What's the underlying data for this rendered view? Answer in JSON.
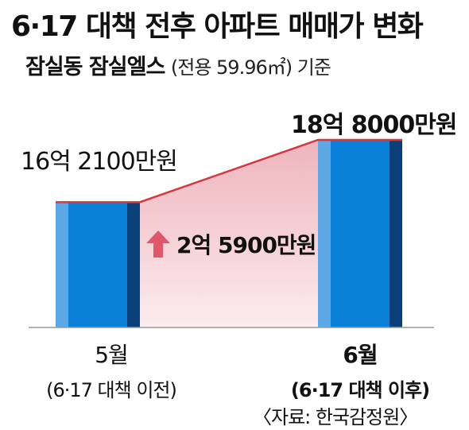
{
  "title": "6·17 대책 전후 아파트 매매가 변화",
  "subtitle": {
    "name": "잠실동 잠실엘스",
    "detail": "(전용 59.96㎡) 기준"
  },
  "source": "〈자료: 한국감정원〉",
  "colors": {
    "bar_main": "#0a7fd8",
    "bar_light": "#5ca8e4",
    "bar_dark": "#0b3f7a",
    "area_fill": "#f6d2d6",
    "area_line": "#d0393f",
    "arrow": "#e0566a",
    "axis": "#999999"
  },
  "chart_data": {
    "type": "bar",
    "categories": [
      "5월",
      "6월"
    ],
    "category_notes": [
      "(6·17 대책 이전)",
      "(6·17 대책 이후)"
    ],
    "values": [
      16.21,
      18.8
    ],
    "value_labels": [
      "16억 2100만원",
      "18억 8000만원"
    ],
    "unit": "억원",
    "difference": 2.59,
    "difference_label": "2억 5900만원",
    "ylim": [
      0,
      18.8
    ]
  }
}
